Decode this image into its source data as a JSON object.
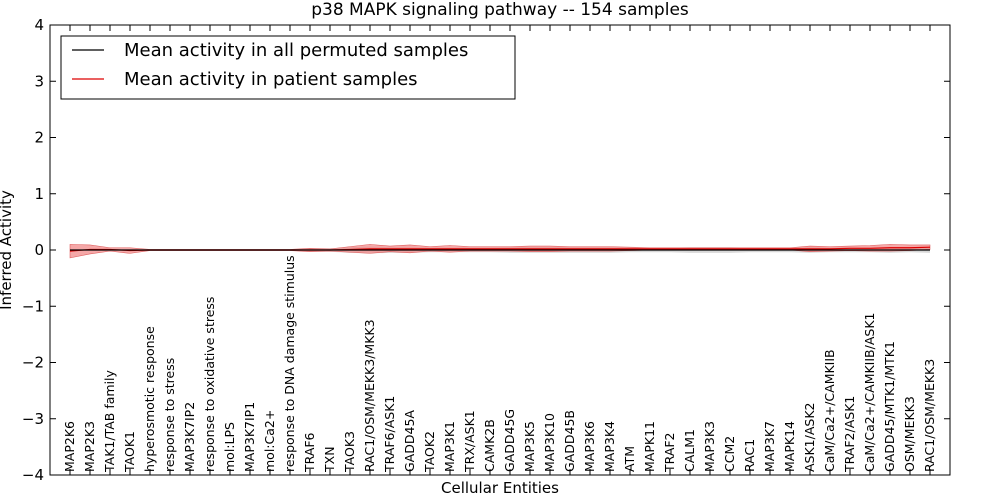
{
  "chart_data": {
    "type": "line",
    "title": "p38 MAPK signaling pathway -- 154 samples",
    "xlabel": "Cellular Entities",
    "ylabel": "Inferred Activity",
    "ylim": [
      -4,
      4
    ],
    "yticks": [
      "4",
      "3",
      "2",
      "1",
      "0",
      "−1",
      "−2",
      "−3",
      "−4"
    ],
    "legend_position": "top-left",
    "colors": {
      "permuted": "#000000",
      "patient": "#dd0000",
      "patient_band": "#f28b8b",
      "permuted_band": "#c8c8c8"
    },
    "categories": [
      "MAP2K6",
      "MAP2K3",
      "TAK1/TAB family",
      "TAOK1",
      "hyperosmotic response",
      "response to stress",
      "MAP3K7IP2",
      "response to oxidative stress",
      "mol:LPS",
      "MAP3K7IP1",
      "mol:Ca2+",
      "response to DNA damage stimulus",
      "TRAF6",
      "TXN",
      "TAOK3",
      "RAC1/OSM/MEKK3/MKK3",
      "TRAF6/ASK1",
      "GADD45A",
      "TAOK2",
      "MAP3K1",
      "TRX/ASK1",
      "CAMK2B",
      "GADD45G",
      "MAP3K5",
      "MAP3K10",
      "GADD45B",
      "MAP3K6",
      "MAP3K4",
      "ATM",
      "MAPK11",
      "TRAF2",
      "CALM1",
      "MAP3K3",
      "CCM2",
      "RAC1",
      "MAP3K7",
      "MAPK14",
      "ASK1/ASK2",
      "CaM/Ca2+/CAMKIIB",
      "TRAF2/ASK1",
      "CaM/Ca2+/CAMKIIB/ASK1",
      "GADD45/MTK1/MTK1",
      "OSM/MEKK3",
      "RAC1/OSM/MEKK3"
    ],
    "series": [
      {
        "name": "Mean activity in all permuted samples",
        "values": [
          0,
          0,
          0,
          0,
          0,
          0,
          0,
          0,
          0,
          0,
          0,
          0,
          0,
          0,
          0,
          0,
          0,
          0,
          0,
          0,
          0,
          0,
          0,
          0,
          0,
          0,
          0,
          0,
          0,
          0,
          0,
          0,
          0,
          0,
          0,
          0,
          0,
          0,
          0,
          0,
          0,
          0,
          0,
          0
        ],
        "band": [
          0.01,
          0.01,
          0.01,
          0.01,
          0.01,
          0.01,
          0.01,
          0.01,
          0.01,
          0.01,
          0.01,
          0.01,
          0.03,
          0.03,
          0.05,
          0.06,
          0.05,
          0.05,
          0.04,
          0.04,
          0.04,
          0.04,
          0.05,
          0.05,
          0.05,
          0.05,
          0.05,
          0.05,
          0.04,
          0.04,
          0.04,
          0.05,
          0.05,
          0.05,
          0.04,
          0.04,
          0.04,
          0.05,
          0.04,
          0.04,
          0.04,
          0.05,
          0.04,
          0.05
        ]
      },
      {
        "name": "Mean activity in patient samples",
        "values": [
          -0.02,
          0.01,
          0.01,
          -0.01,
          0,
          0,
          0,
          0,
          0,
          0,
          0,
          0,
          0,
          0,
          0.01,
          0.02,
          0.02,
          0.02,
          0.02,
          0.02,
          0.02,
          0.02,
          0.02,
          0.02,
          0.02,
          0.02,
          0.02,
          0.02,
          0.02,
          0.02,
          0.02,
          0.02,
          0.02,
          0.02,
          0.02,
          0.02,
          0.02,
          0.02,
          0.02,
          0.03,
          0.03,
          0.04,
          0.04,
          0.05
        ],
        "band": [
          0.12,
          0.08,
          0.03,
          0.05,
          0.01,
          0.01,
          0.01,
          0.01,
          0.01,
          0.01,
          0.01,
          0.01,
          0.03,
          0.02,
          0.05,
          0.08,
          0.05,
          0.07,
          0.04,
          0.06,
          0.04,
          0.04,
          0.04,
          0.05,
          0.05,
          0.04,
          0.04,
          0.04,
          0.03,
          0.02,
          0.02,
          0.02,
          0.02,
          0.02,
          0.02,
          0.02,
          0.02,
          0.05,
          0.04,
          0.04,
          0.05,
          0.06,
          0.05,
          0.04
        ]
      }
    ]
  }
}
